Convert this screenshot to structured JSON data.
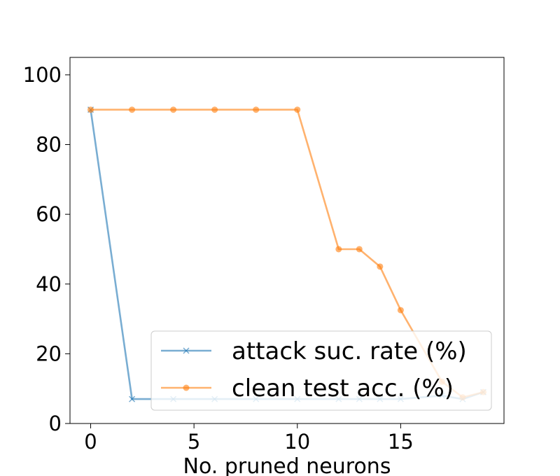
{
  "chart_data": {
    "type": "line",
    "title": "",
    "xlabel": "No. pruned neurons",
    "ylabel": "",
    "xlim": [
      -1,
      20
    ],
    "ylim": [
      0,
      105
    ],
    "xticks": [
      0,
      5,
      10,
      15
    ],
    "yticks": [
      0,
      20,
      40,
      60,
      80,
      100
    ],
    "grid": false,
    "legend_position": "lower-right",
    "x": [
      0,
      2,
      4,
      6,
      8,
      10,
      12,
      13,
      14,
      15,
      17,
      18,
      19
    ],
    "series": [
      {
        "name": "attack suc. rate (%)",
        "color": "#1f77b4",
        "marker": "x",
        "values": [
          90,
          7,
          7,
          7,
          7,
          7,
          7,
          7,
          7,
          7,
          8,
          7,
          9
        ]
      },
      {
        "name": "clean test acc. (%)",
        "color": "#ff7f0e",
        "marker": "o",
        "values": [
          90,
          90,
          90,
          90,
          90,
          90,
          50,
          50,
          45,
          32.5,
          12,
          7.5,
          9
        ]
      }
    ]
  }
}
